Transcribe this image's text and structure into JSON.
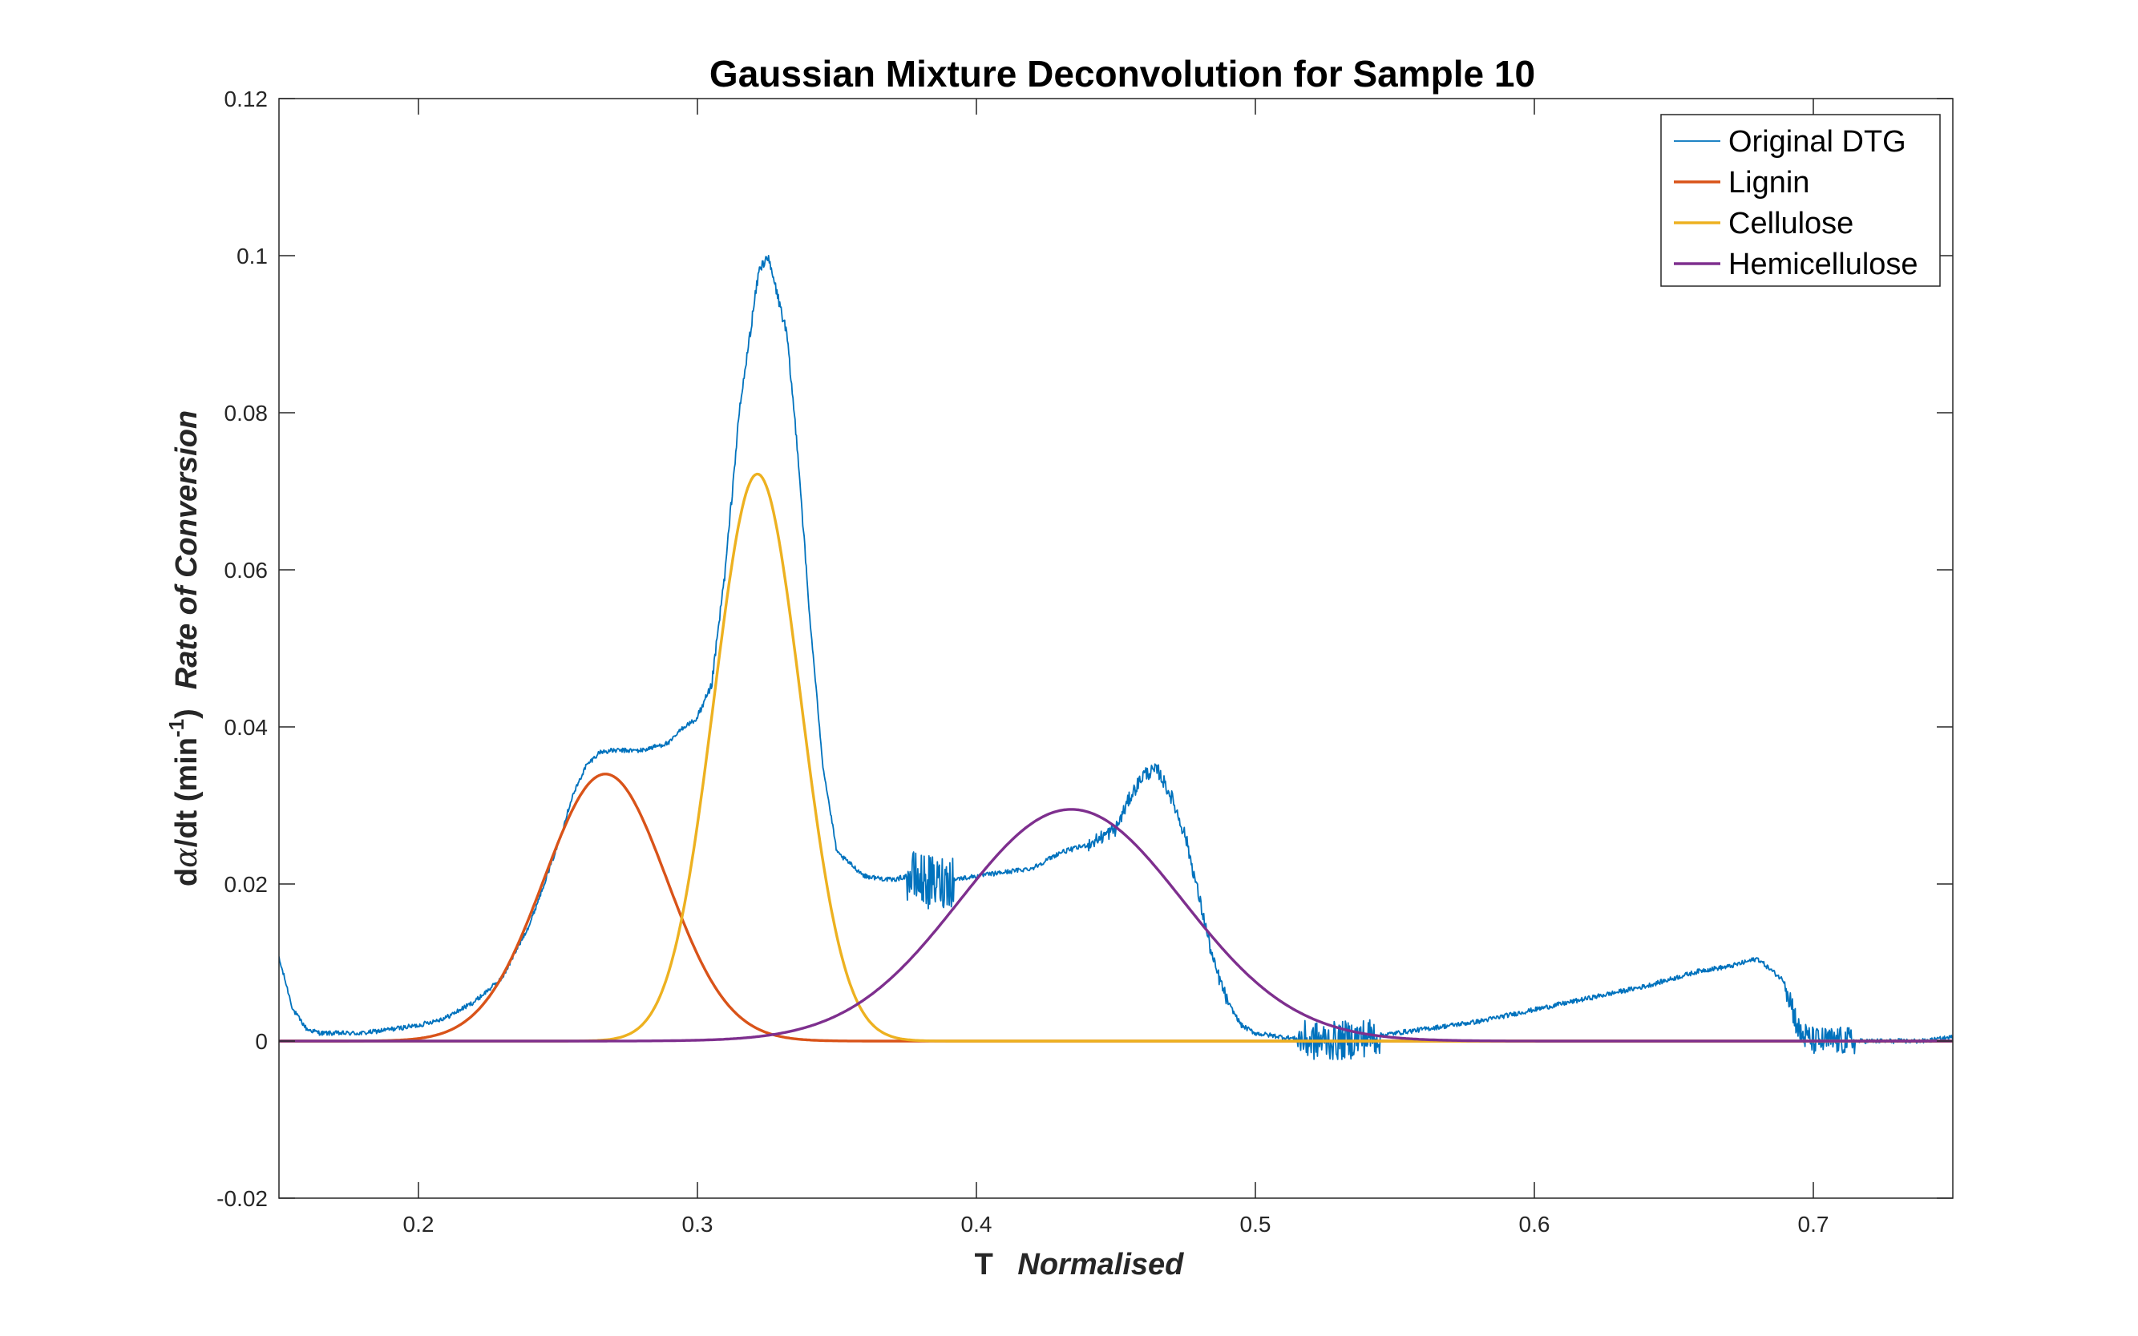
{
  "chart_data": {
    "type": "line",
    "title": "Gaussian Mixture Deconvolution for Sample 10",
    "xlabel": {
      "main": "T",
      "italic": "Normalised"
    },
    "ylabel": {
      "prefix": "d",
      "alpha": "α",
      "mid": "/dt (min",
      "exponent": "-1",
      "suffix": ")",
      "italic": "Rate of Conversion"
    },
    "xlim": [
      0.15,
      0.75
    ],
    "ylim": [
      -0.02,
      0.12
    ],
    "xticks": [
      0.2,
      0.3,
      0.4,
      0.5,
      0.6,
      0.7
    ],
    "xtick_labels": [
      "0.2",
      "0.3",
      "0.4",
      "0.5",
      "0.6",
      "0.7"
    ],
    "yticks": [
      -0.02,
      0,
      0.02,
      0.04,
      0.06,
      0.08,
      0.1,
      0.12
    ],
    "ytick_labels": [
      "-0.02",
      "0",
      "0.02",
      "0.04",
      "0.06",
      "0.08",
      "0.1",
      "0.12"
    ],
    "grid": false,
    "legend_position": "top-right",
    "series": [
      {
        "name": "Original DTG",
        "color": "#0072BD",
        "style": "noisy-measured",
        "x": [
          0.15,
          0.152,
          0.155,
          0.16,
          0.165,
          0.17,
          0.18,
          0.19,
          0.2,
          0.21,
          0.22,
          0.23,
          0.24,
          0.25,
          0.255,
          0.26,
          0.265,
          0.27,
          0.28,
          0.29,
          0.295,
          0.3,
          0.305,
          0.31,
          0.315,
          0.32,
          0.322,
          0.325,
          0.328,
          0.332,
          0.336,
          0.34,
          0.345,
          0.35,
          0.36,
          0.37,
          0.375,
          0.38,
          0.385,
          0.39,
          0.4,
          0.41,
          0.42,
          0.43,
          0.44,
          0.45,
          0.455,
          0.46,
          0.465,
          0.47,
          0.475,
          0.48,
          0.485,
          0.49,
          0.495,
          0.5,
          0.51,
          0.52,
          0.53,
          0.54,
          0.55,
          0.56,
          0.58,
          0.6,
          0.62,
          0.64,
          0.66,
          0.67,
          0.68,
          0.685,
          0.69,
          0.695,
          0.7,
          0.71,
          0.72,
          0.73,
          0.74,
          0.75
        ],
        "y": [
          0.0105,
          0.008,
          0.004,
          0.0015,
          0.001,
          0.001,
          0.001,
          0.0015,
          0.002,
          0.003,
          0.005,
          0.008,
          0.015,
          0.025,
          0.031,
          0.035,
          0.0368,
          0.037,
          0.037,
          0.038,
          0.04,
          0.041,
          0.045,
          0.06,
          0.08,
          0.093,
          0.098,
          0.1,
          0.096,
          0.09,
          0.075,
          0.055,
          0.035,
          0.024,
          0.021,
          0.0205,
          0.021,
          0.0205,
          0.02,
          0.0205,
          0.021,
          0.0215,
          0.022,
          0.024,
          0.025,
          0.027,
          0.031,
          0.034,
          0.0345,
          0.031,
          0.026,
          0.018,
          0.01,
          0.005,
          0.002,
          0.001,
          0.0005,
          0.0,
          0.0,
          0.0005,
          0.001,
          0.0015,
          0.0025,
          0.004,
          0.0055,
          0.007,
          0.009,
          0.0095,
          0.0105,
          0.009,
          0.0075,
          0.001,
          0.0,
          0.0,
          0.0,
          0.0,
          0.0,
          0.0005
        ]
      },
      {
        "name": "Lignin",
        "color": "#D95319",
        "style": "gaussian",
        "amplitude": 0.034,
        "center": 0.267,
        "sigma": 0.022
      },
      {
        "name": "Cellulose",
        "color": "#EDB120",
        "style": "gaussian",
        "amplitude": 0.0722,
        "center": 0.3215,
        "sigma": 0.0155
      },
      {
        "name": "Hemicellulose",
        "color": "#7E2F8E",
        "style": "gaussian",
        "amplitude": 0.0295,
        "center": 0.434,
        "sigma": 0.04
      }
    ]
  }
}
